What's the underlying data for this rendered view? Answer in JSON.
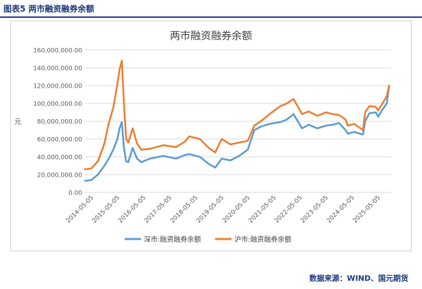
{
  "figure_label": "图表5 两市融资融券余额",
  "source_note": "数据来源：WIND、国元期货",
  "chart_data": {
    "type": "line",
    "title": "两市融资融券余额",
    "ylabel": "元",
    "ylim": [
      0,
      160000000
    ],
    "y_ticks": [
      "0.00",
      "20,000,000.00",
      "40,000,000.00",
      "60,000,000.00",
      "80,000,000.00",
      "100,000,000.00",
      "120,000,000.00",
      "140,000,000.00",
      "160,000,000.00"
    ],
    "x_ticks": [
      "2014-05-05",
      "2015-05-05",
      "2016-05-05",
      "2017-05-05",
      "2018-05-05",
      "2019-05-05",
      "2020-05-05",
      "2021-05-05",
      "2022-05-05",
      "2023-05-05",
      "2024-05-05",
      "2025-05-05"
    ],
    "grid": true,
    "legend_position": "bottom",
    "series": [
      {
        "name": "深市:融资融券余额",
        "color": "#5b9bd5",
        "x": [
          "2014-01",
          "2014-04",
          "2014-07",
          "2014-10",
          "2014-12",
          "2015-02",
          "2015-04",
          "2015-05",
          "2015-06",
          "2015-07",
          "2015-08",
          "2015-09",
          "2015-11",
          "2016-01",
          "2016-03",
          "2016-07",
          "2017-01",
          "2017-07",
          "2017-11",
          "2018-01",
          "2018-06",
          "2018-10",
          "2019-01",
          "2019-04",
          "2019-08",
          "2019-12",
          "2020-04",
          "2020-07",
          "2020-10",
          "2021-02",
          "2021-07",
          "2021-10",
          "2022-01",
          "2022-05",
          "2022-08",
          "2022-12",
          "2023-04",
          "2023-07",
          "2023-10",
          "2024-01",
          "2024-02",
          "2024-05",
          "2024-09",
          "2024-10",
          "2024-12",
          "2025-03",
          "2025-04",
          "2025-06",
          "2025-08",
          "2025-09"
        ],
        "values": [
          13000000,
          14000000,
          20000000,
          30000000,
          38000000,
          48000000,
          60000000,
          72000000,
          79000000,
          50000000,
          35000000,
          34000000,
          50000000,
          38000000,
          34000000,
          38000000,
          41000000,
          38000000,
          42000000,
          43000000,
          40000000,
          32000000,
          28000000,
          38000000,
          36000000,
          41000000,
          48000000,
          70000000,
          74000000,
          77000000,
          79000000,
          82000000,
          88000000,
          72000000,
          76000000,
          72000000,
          75000000,
          76000000,
          78000000,
          70000000,
          66000000,
          68000000,
          65000000,
          80000000,
          89000000,
          90000000,
          85000000,
          93000000,
          100000000,
          119000000
        ]
      },
      {
        "name": "沪市:融资融券余额",
        "color": "#ed7d31",
        "x": [
          "2014-01",
          "2014-04",
          "2014-07",
          "2014-10",
          "2014-12",
          "2015-02",
          "2015-04",
          "2015-05",
          "2015-06",
          "2015-07",
          "2015-08",
          "2015-09",
          "2015-11",
          "2016-01",
          "2016-03",
          "2016-07",
          "2017-01",
          "2017-07",
          "2017-11",
          "2018-01",
          "2018-06",
          "2018-10",
          "2019-01",
          "2019-04",
          "2019-08",
          "2019-12",
          "2020-04",
          "2020-07",
          "2020-10",
          "2021-02",
          "2021-07",
          "2021-10",
          "2022-01",
          "2022-05",
          "2022-08",
          "2022-12",
          "2023-04",
          "2023-07",
          "2023-10",
          "2024-01",
          "2024-02",
          "2024-05",
          "2024-09",
          "2024-10",
          "2024-12",
          "2025-03",
          "2025-04",
          "2025-06",
          "2025-08",
          "2025-09"
        ],
        "values": [
          26000000,
          27000000,
          35000000,
          55000000,
          78000000,
          95000000,
          122000000,
          138000000,
          148000000,
          100000000,
          60000000,
          56000000,
          72000000,
          55000000,
          48000000,
          49000000,
          53000000,
          51000000,
          57000000,
          63000000,
          60000000,
          50000000,
          45000000,
          60000000,
          54000000,
          56000000,
          58000000,
          75000000,
          80000000,
          88000000,
          97000000,
          100000000,
          105000000,
          88000000,
          91000000,
          86000000,
          90000000,
          88000000,
          87000000,
          82000000,
          75000000,
          77000000,
          70000000,
          90000000,
          97000000,
          96000000,
          92000000,
          100000000,
          108000000,
          120000000
        ]
      }
    ]
  }
}
